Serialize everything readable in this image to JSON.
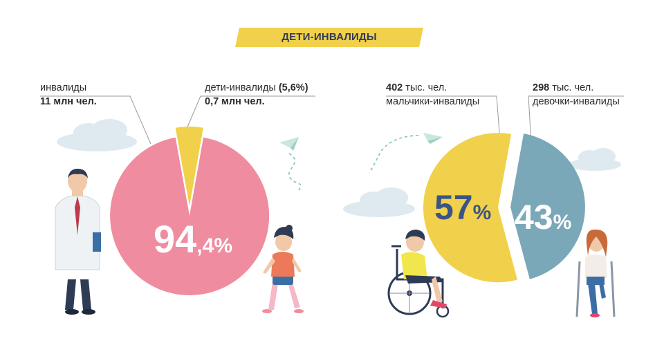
{
  "title": "ДЕТИ-ИНВАЛИДЫ",
  "colors": {
    "pink": "#f08ca0",
    "yellow": "#f1d14b",
    "teal": "#7aa8b8",
    "navy": "#2e3b55"
  },
  "chart_data": [
    {
      "type": "pie",
      "slices": [
        {
          "label": "инвалиды",
          "value": 94.4,
          "display": "94,4%",
          "count": "11 млн чел.",
          "color": "#f08ca0"
        },
        {
          "label": "дети-инвалиды",
          "value": 5.6,
          "display": "5,6%",
          "count": "0,7 млн чел.",
          "color": "#f1d14b"
        }
      ]
    },
    {
      "type": "pie",
      "slices": [
        {
          "label": "мальчики-инвалиды",
          "value": 57,
          "display": "57%",
          "count": "402 тыс. чел.",
          "color": "#f1d14b"
        },
        {
          "label": "девочки-инвалиды",
          "value": 43,
          "display": "43%",
          "count": "298 тыс. чел.",
          "color": "#7aa8b8"
        }
      ]
    }
  ],
  "labels": {
    "invalids_name": "инвалиды",
    "invalids_count": "11 млн чел.",
    "children_name": "дети-инвалиды",
    "children_pct": "(5,6%)",
    "children_count": "0,7 млн чел.",
    "pct_big": "94",
    "pct_big_rest": ",4%",
    "boys_count_num": "402",
    "boys_count_unit": "тыс. чел.",
    "boys_name": "мальчики-инвалиды",
    "girls_count_num": "298",
    "girls_count_unit": "тыс. чел.",
    "girls_name": "девочки-инвалиды",
    "boys_pct_num": "57",
    "boys_pct_sign": "%",
    "girls_pct_num": "43",
    "girls_pct_sign": "%"
  },
  "icons": [
    "cloud-icon",
    "paper-plane-icon",
    "doctor-icon",
    "child-icon",
    "wheelchair-boy-icon",
    "girl-crutches-icon"
  ]
}
